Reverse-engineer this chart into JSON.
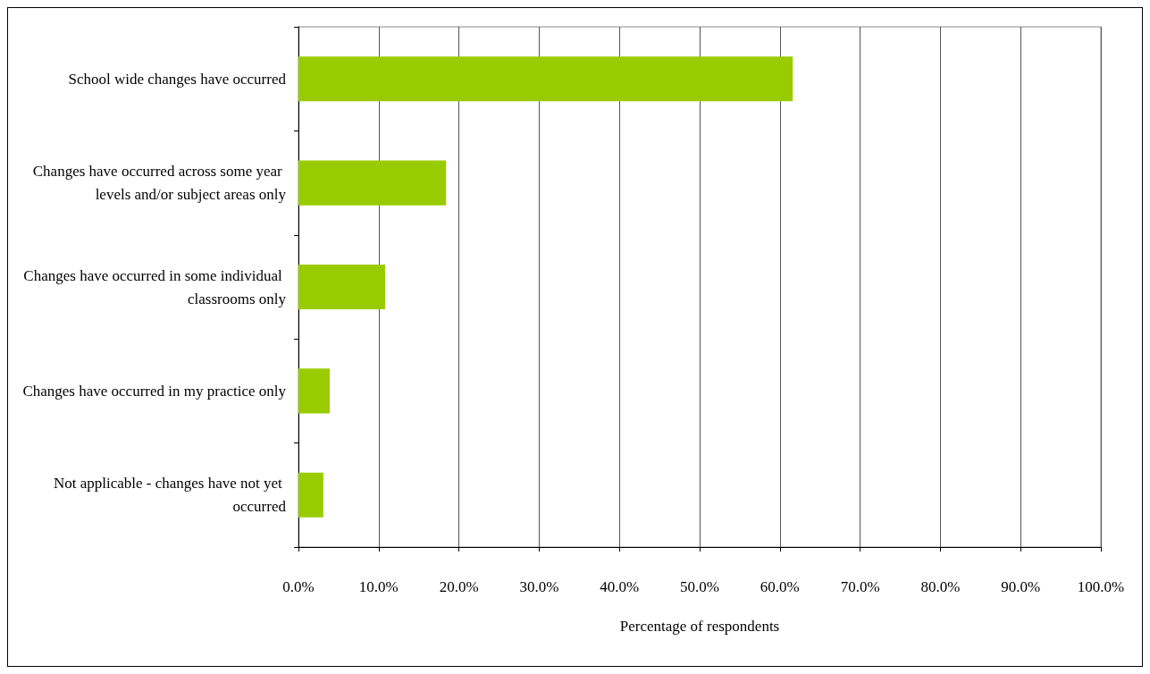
{
  "chart_data": {
    "type": "bar",
    "orientation": "horizontal",
    "categories": [
      "School wide changes have occurred",
      "Changes have occurred across some year levels and/or subject areas only",
      "Changes have occurred in some individual classrooms only",
      "Changes have occurred in my practice only",
      "Not applicable - changes have not yet occurred"
    ],
    "values": [
      61.6,
      18.4,
      10.8,
      3.9,
      3.1
    ],
    "color": "#99cc00",
    "xlim": [
      0,
      100
    ],
    "xticks": [
      {
        "value": 0,
        "label": "0.0%"
      },
      {
        "value": 10,
        "label": "10.0%"
      },
      {
        "value": 20,
        "label": "20.0%"
      },
      {
        "value": 30,
        "label": "30.0%"
      },
      {
        "value": 40,
        "label": "40.0%"
      },
      {
        "value": 50,
        "label": "50.0%"
      },
      {
        "value": 60,
        "label": "60.0%"
      },
      {
        "value": 70,
        "label": "70.0%"
      },
      {
        "value": 80,
        "label": "80.0%"
      },
      {
        "value": 90,
        "label": "90.0%"
      },
      {
        "value": 100,
        "label": "100.0%"
      }
    ],
    "xlabel": "Percentage of respondents",
    "grid": "x"
  }
}
